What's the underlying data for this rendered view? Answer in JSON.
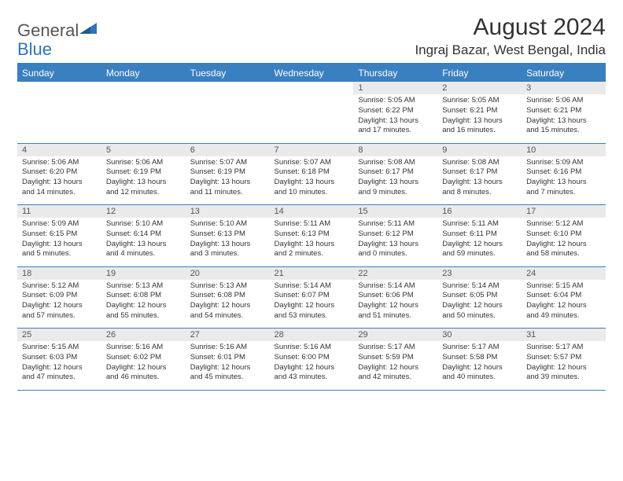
{
  "logo": {
    "text1": "General",
    "text2": "Blue"
  },
  "title": "August 2024",
  "location": "Ingraj Bazar, West Bengal, India",
  "colors": {
    "header_bg": "#3a7fc0",
    "header_text": "#ffffff",
    "daynum_bg": "#eaeaea",
    "border": "#3a7fc0",
    "text": "#333333"
  },
  "weekdays": [
    "Sunday",
    "Monday",
    "Tuesday",
    "Wednesday",
    "Thursday",
    "Friday",
    "Saturday"
  ],
  "weeks": [
    {
      "nums": [
        "",
        "",
        "",
        "",
        "1",
        "2",
        "3"
      ],
      "cells": [
        null,
        null,
        null,
        null,
        {
          "sr": "Sunrise: 5:05 AM",
          "ss": "Sunset: 6:22 PM",
          "dl": "Daylight: 13 hours and 17 minutes."
        },
        {
          "sr": "Sunrise: 5:05 AM",
          "ss": "Sunset: 6:21 PM",
          "dl": "Daylight: 13 hours and 16 minutes."
        },
        {
          "sr": "Sunrise: 5:06 AM",
          "ss": "Sunset: 6:21 PM",
          "dl": "Daylight: 13 hours and 15 minutes."
        }
      ]
    },
    {
      "nums": [
        "4",
        "5",
        "6",
        "7",
        "8",
        "9",
        "10"
      ],
      "cells": [
        {
          "sr": "Sunrise: 5:06 AM",
          "ss": "Sunset: 6:20 PM",
          "dl": "Daylight: 13 hours and 14 minutes."
        },
        {
          "sr": "Sunrise: 5:06 AM",
          "ss": "Sunset: 6:19 PM",
          "dl": "Daylight: 13 hours and 12 minutes."
        },
        {
          "sr": "Sunrise: 5:07 AM",
          "ss": "Sunset: 6:19 PM",
          "dl": "Daylight: 13 hours and 11 minutes."
        },
        {
          "sr": "Sunrise: 5:07 AM",
          "ss": "Sunset: 6:18 PM",
          "dl": "Daylight: 13 hours and 10 minutes."
        },
        {
          "sr": "Sunrise: 5:08 AM",
          "ss": "Sunset: 6:17 PM",
          "dl": "Daylight: 13 hours and 9 minutes."
        },
        {
          "sr": "Sunrise: 5:08 AM",
          "ss": "Sunset: 6:17 PM",
          "dl": "Daylight: 13 hours and 8 minutes."
        },
        {
          "sr": "Sunrise: 5:09 AM",
          "ss": "Sunset: 6:16 PM",
          "dl": "Daylight: 13 hours and 7 minutes."
        }
      ]
    },
    {
      "nums": [
        "11",
        "12",
        "13",
        "14",
        "15",
        "16",
        "17"
      ],
      "cells": [
        {
          "sr": "Sunrise: 5:09 AM",
          "ss": "Sunset: 6:15 PM",
          "dl": "Daylight: 13 hours and 5 minutes."
        },
        {
          "sr": "Sunrise: 5:10 AM",
          "ss": "Sunset: 6:14 PM",
          "dl": "Daylight: 13 hours and 4 minutes."
        },
        {
          "sr": "Sunrise: 5:10 AM",
          "ss": "Sunset: 6:13 PM",
          "dl": "Daylight: 13 hours and 3 minutes."
        },
        {
          "sr": "Sunrise: 5:11 AM",
          "ss": "Sunset: 6:13 PM",
          "dl": "Daylight: 13 hours and 2 minutes."
        },
        {
          "sr": "Sunrise: 5:11 AM",
          "ss": "Sunset: 6:12 PM",
          "dl": "Daylight: 13 hours and 0 minutes."
        },
        {
          "sr": "Sunrise: 5:11 AM",
          "ss": "Sunset: 6:11 PM",
          "dl": "Daylight: 12 hours and 59 minutes."
        },
        {
          "sr": "Sunrise: 5:12 AM",
          "ss": "Sunset: 6:10 PM",
          "dl": "Daylight: 12 hours and 58 minutes."
        }
      ]
    },
    {
      "nums": [
        "18",
        "19",
        "20",
        "21",
        "22",
        "23",
        "24"
      ],
      "cells": [
        {
          "sr": "Sunrise: 5:12 AM",
          "ss": "Sunset: 6:09 PM",
          "dl": "Daylight: 12 hours and 57 minutes."
        },
        {
          "sr": "Sunrise: 5:13 AM",
          "ss": "Sunset: 6:08 PM",
          "dl": "Daylight: 12 hours and 55 minutes."
        },
        {
          "sr": "Sunrise: 5:13 AM",
          "ss": "Sunset: 6:08 PM",
          "dl": "Daylight: 12 hours and 54 minutes."
        },
        {
          "sr": "Sunrise: 5:14 AM",
          "ss": "Sunset: 6:07 PM",
          "dl": "Daylight: 12 hours and 53 minutes."
        },
        {
          "sr": "Sunrise: 5:14 AM",
          "ss": "Sunset: 6:06 PM",
          "dl": "Daylight: 12 hours and 51 minutes."
        },
        {
          "sr": "Sunrise: 5:14 AM",
          "ss": "Sunset: 6:05 PM",
          "dl": "Daylight: 12 hours and 50 minutes."
        },
        {
          "sr": "Sunrise: 5:15 AM",
          "ss": "Sunset: 6:04 PM",
          "dl": "Daylight: 12 hours and 49 minutes."
        }
      ]
    },
    {
      "nums": [
        "25",
        "26",
        "27",
        "28",
        "29",
        "30",
        "31"
      ],
      "cells": [
        {
          "sr": "Sunrise: 5:15 AM",
          "ss": "Sunset: 6:03 PM",
          "dl": "Daylight: 12 hours and 47 minutes."
        },
        {
          "sr": "Sunrise: 5:16 AM",
          "ss": "Sunset: 6:02 PM",
          "dl": "Daylight: 12 hours and 46 minutes."
        },
        {
          "sr": "Sunrise: 5:16 AM",
          "ss": "Sunset: 6:01 PM",
          "dl": "Daylight: 12 hours and 45 minutes."
        },
        {
          "sr": "Sunrise: 5:16 AM",
          "ss": "Sunset: 6:00 PM",
          "dl": "Daylight: 12 hours and 43 minutes."
        },
        {
          "sr": "Sunrise: 5:17 AM",
          "ss": "Sunset: 5:59 PM",
          "dl": "Daylight: 12 hours and 42 minutes."
        },
        {
          "sr": "Sunrise: 5:17 AM",
          "ss": "Sunset: 5:58 PM",
          "dl": "Daylight: 12 hours and 40 minutes."
        },
        {
          "sr": "Sunrise: 5:17 AM",
          "ss": "Sunset: 5:57 PM",
          "dl": "Daylight: 12 hours and 39 minutes."
        }
      ]
    }
  ]
}
